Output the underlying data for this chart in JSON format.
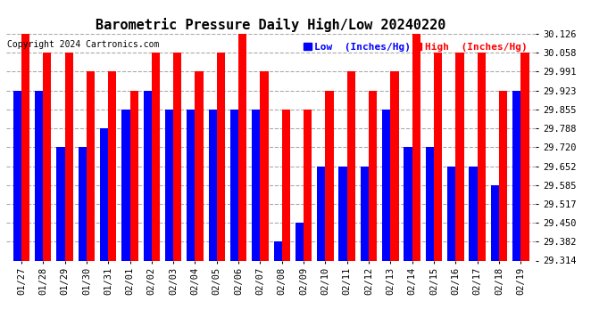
{
  "title": "Barometric Pressure Daily High/Low 20240220",
  "copyright": "Copyright 2024 Cartronics.com",
  "legend_low": "Low  (Inches/Hg)",
  "legend_high": "High  (Inches/Hg)",
  "dates": [
    "01/27",
    "01/28",
    "01/29",
    "01/30",
    "01/31",
    "02/01",
    "02/02",
    "02/03",
    "02/04",
    "02/05",
    "02/06",
    "02/07",
    "02/08",
    "02/09",
    "02/10",
    "02/11",
    "02/12",
    "02/13",
    "02/14",
    "02/15",
    "02/16",
    "02/17",
    "02/18",
    "02/19"
  ],
  "highs": [
    30.126,
    30.058,
    30.058,
    29.991,
    29.991,
    29.923,
    30.058,
    30.058,
    29.991,
    30.058,
    30.126,
    29.991,
    29.855,
    29.855,
    29.923,
    29.991,
    29.923,
    29.991,
    30.126,
    30.058,
    30.058,
    30.058,
    29.923,
    30.058
  ],
  "lows": [
    29.923,
    29.923,
    29.72,
    29.72,
    29.788,
    29.855,
    29.923,
    29.855,
    29.855,
    29.855,
    29.855,
    29.855,
    29.382,
    29.45,
    29.652,
    29.652,
    29.652,
    29.855,
    29.72,
    29.72,
    29.652,
    29.652,
    29.585,
    29.923
  ],
  "ymin": 29.314,
  "ymax": 30.126,
  "yticks": [
    29.314,
    29.382,
    29.45,
    29.517,
    29.585,
    29.652,
    29.72,
    29.788,
    29.855,
    29.923,
    29.991,
    30.058,
    30.126
  ],
  "bar_color_high": "#ff0000",
  "bar_color_low": "#0000ff",
  "background_color": "#ffffff",
  "plot_bg_color": "#ffffff",
  "grid_color": "#aaaaaa",
  "title_fontsize": 11,
  "tick_fontsize": 7.5,
  "legend_fontsize": 8,
  "copyright_fontsize": 7
}
